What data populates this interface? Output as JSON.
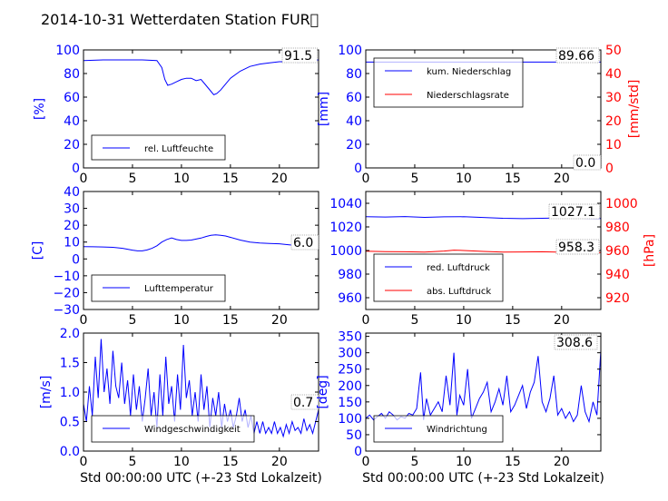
{
  "figure": {
    "title": "2014-10-31 Wetterdaten Station FUR\u0000"
  },
  "colors": {
    "blue": "#0000ff",
    "red": "#ff0000",
    "lightblue": "#8080ff",
    "black": "#000000"
  },
  "chart_data": [
    {
      "id": "humidity",
      "type": "line",
      "xlim": [
        0,
        24
      ],
      "xticks": [
        "0",
        "5",
        "10",
        "15",
        "20"
      ],
      "xlabel": "",
      "ylim": [
        0,
        100
      ],
      "yticks": [
        "0",
        "20",
        "40",
        "60",
        "80",
        "100"
      ],
      "ylabel": "[%]",
      "value_box": "91.5",
      "legend": [
        "rel. Luftfeuchte"
      ],
      "series": [
        {
          "name": "rel. Luftfeuchte",
          "color": "blue",
          "x": [
            0,
            2,
            4,
            6,
            7.5,
            8,
            8.3,
            8.6,
            9,
            9.5,
            10,
            10.5,
            11,
            11.5,
            12,
            12.5,
            13,
            13.3,
            13.6,
            14,
            14.5,
            15,
            16,
            17,
            18,
            19,
            20,
            21,
            22,
            23,
            24
          ],
          "y": [
            91,
            91.5,
            91.5,
            91.5,
            91,
            85,
            75,
            70,
            71,
            73,
            75,
            76,
            76,
            74,
            75,
            70,
            65,
            62,
            63,
            66,
            71,
            76,
            82,
            86,
            88,
            89,
            90,
            90,
            89.5,
            90.5,
            91.5
          ]
        }
      ]
    },
    {
      "id": "precipitation",
      "type": "line",
      "xlim": [
        0,
        24
      ],
      "xticks": [
        "0",
        "5",
        "10",
        "15",
        "20"
      ],
      "xlabel": "",
      "ylim": [
        0,
        100
      ],
      "yticks": [
        "0",
        "20",
        "40",
        "60",
        "80",
        "100"
      ],
      "ylabel": "[mm]",
      "ylim_right": [
        0,
        50
      ],
      "yticks_right": [
        "0",
        "10",
        "20",
        "30",
        "40",
        "50"
      ],
      "ylabel_right": "[mm/std]",
      "value_box": "89.66",
      "value_box_lower": "0.0",
      "legend": [
        "kum. Niederschlag",
        "Niederschlagsrate"
      ],
      "series": [
        {
          "name": "kum. Niederschlag",
          "color": "blue",
          "axis": "left",
          "x": [
            0,
            24
          ],
          "y": [
            89.66,
            89.66
          ]
        },
        {
          "name": "Niederschlagsrate",
          "color": "red",
          "axis": "right",
          "x": [
            0,
            24
          ],
          "y": [
            0,
            0
          ]
        }
      ]
    },
    {
      "id": "temperature",
      "type": "line",
      "xlim": [
        0,
        24
      ],
      "xticks": [
        "0",
        "5",
        "10",
        "15",
        "20"
      ],
      "xlabel": "",
      "ylim": [
        -30,
        40
      ],
      "yticks": [
        "−30",
        "−20",
        "−10",
        "0",
        "10",
        "20",
        "30",
        "40"
      ],
      "ylabel": "[C]",
      "value_box": "6.0",
      "legend": [
        "Lufttemperatur"
      ],
      "series": [
        {
          "name": "Lufttemperatur",
          "color": "blue",
          "x": [
            0,
            1,
            2,
            3,
            4,
            5,
            5.5,
            6,
            6.5,
            7,
            7.5,
            8,
            8.5,
            9,
            9.5,
            10,
            10.5,
            11,
            11.5,
            12,
            12.5,
            13,
            13.5,
            14,
            14.5,
            15,
            16,
            17,
            18,
            19,
            20,
            21,
            22,
            23,
            24
          ],
          "y": [
            7.3,
            7.2,
            7.1,
            6.9,
            6.3,
            5.2,
            4.8,
            4.8,
            5.3,
            6.3,
            7.8,
            10,
            11.5,
            12.5,
            11.5,
            11,
            11,
            11.2,
            11.8,
            12.4,
            13.3,
            14,
            14.3,
            14,
            13.6,
            12.8,
            11.2,
            10,
            9.4,
            9.2,
            9,
            8.4,
            7.8,
            7.3,
            6.0
          ]
        }
      ]
    },
    {
      "id": "pressure",
      "type": "line",
      "xlim": [
        0,
        24
      ],
      "xticks": [
        "0",
        "5",
        "10",
        "15",
        "20"
      ],
      "xlabel": "",
      "ylim": [
        950,
        1050
      ],
      "yticks": [
        "960",
        "980",
        "1000",
        "1020",
        "1040"
      ],
      "ylabel": "",
      "ylim_right": [
        910,
        1010
      ],
      "yticks_right": [
        "920",
        "940",
        "960",
        "980",
        "1000"
      ],
      "ylabel_right": "[hPa]",
      "value_box": "1027.1",
      "value_box_lower": "958.3",
      "legend": [
        "red. Luftdruck",
        "abs. Luftdruck"
      ],
      "series": [
        {
          "name": "red. Luftdruck",
          "color": "blue",
          "axis": "left",
          "x": [
            0,
            2,
            4,
            6,
            8,
            10,
            12,
            14,
            16,
            18,
            20,
            22,
            24
          ],
          "y": [
            1028.6,
            1028.4,
            1028.8,
            1028.1,
            1028.5,
            1028.6,
            1028.0,
            1027.3,
            1027.0,
            1027.3,
            1027.6,
            1027.3,
            1027.1
          ]
        },
        {
          "name": "abs. Luftdruck",
          "color": "red",
          "axis": "right",
          "x": [
            0,
            2,
            4,
            6,
            8,
            9,
            10,
            12,
            14,
            16,
            18,
            20,
            22,
            24
          ],
          "y": [
            959.4,
            959.1,
            958.9,
            958.7,
            959.5,
            960.3,
            960.0,
            959.2,
            958.7,
            958.8,
            958.9,
            958.5,
            958.4,
            958.3
          ]
        }
      ]
    },
    {
      "id": "windspeed",
      "type": "line",
      "xlim": [
        0,
        24
      ],
      "xticks": [
        "0",
        "5",
        "10",
        "15",
        "20"
      ],
      "xlabel": "Std 00:00:00 UTC (+-23 Std Lokalzeit)",
      "ylim": [
        0,
        2.0
      ],
      "yticks": [
        "0.0",
        "0.5",
        "1.0",
        "1.5",
        "2.0"
      ],
      "ylabel": "[m/s]",
      "value_box": "0.7",
      "legend": [
        "Windgeschwindigkeit"
      ],
      "series": [
        {
          "name": "Windgeschwindigkeit",
          "color": "blue",
          "x": [
            0,
            0.3,
            0.6,
            0.9,
            1.2,
            1.5,
            1.8,
            2.1,
            2.4,
            2.7,
            3.0,
            3.3,
            3.6,
            3.9,
            4.2,
            4.5,
            4.8,
            5.1,
            5.4,
            5.7,
            6.0,
            6.3,
            6.6,
            6.9,
            7.2,
            7.5,
            7.8,
            8.1,
            8.4,
            8.7,
            9.0,
            9.3,
            9.6,
            9.9,
            10.2,
            10.5,
            10.8,
            11.1,
            11.4,
            11.7,
            12.0,
            12.3,
            12.6,
            12.9,
            13.2,
            13.5,
            13.8,
            14.1,
            14.4,
            14.7,
            15.0,
            15.3,
            15.6,
            15.9,
            16.2,
            16.5,
            16.8,
            17.1,
            17.4,
            17.7,
            18.0,
            18.3,
            18.6,
            18.9,
            19.2,
            19.5,
            19.8,
            20.1,
            20.4,
            20.7,
            21.0,
            21.3,
            21.6,
            21.9,
            22.2,
            22.5,
            22.8,
            23.1,
            23.4,
            23.7,
            24.0
          ],
          "y": [
            0.8,
            0.5,
            1.1,
            0.6,
            1.6,
            0.9,
            1.9,
            1.0,
            1.4,
            0.8,
            1.7,
            1.1,
            0.9,
            1.5,
            0.8,
            1.2,
            0.6,
            1.3,
            0.7,
            1.1,
            0.5,
            0.9,
            1.4,
            0.6,
            1.0,
            0.4,
            1.3,
            0.6,
            1.6,
            0.8,
            1.1,
            0.5,
            1.3,
            0.7,
            1.8,
            0.9,
            1.2,
            0.6,
            1.0,
            0.5,
            1.3,
            0.7,
            1.1,
            0.4,
            0.9,
            0.6,
            1.0,
            0.4,
            0.8,
            0.5,
            0.7,
            0.4,
            0.6,
            0.9,
            0.5,
            0.7,
            0.4,
            0.6,
            0.3,
            0.5,
            0.3,
            0.5,
            0.3,
            0.4,
            0.3,
            0.5,
            0.3,
            0.4,
            0.25,
            0.45,
            0.3,
            0.5,
            0.35,
            0.4,
            0.3,
            0.55,
            0.35,
            0.45,
            0.3,
            0.5,
            0.7
          ]
        }
      ]
    },
    {
      "id": "winddirection",
      "type": "line",
      "xlim": [
        0,
        24
      ],
      "xticks": [
        "0",
        "5",
        "10",
        "15",
        "20"
      ],
      "xlabel": "Std 00:00:00 UTC (+-23 Std Lokalzeit)",
      "ylim": [
        0,
        360
      ],
      "yticks": [
        "0",
        "50",
        "100",
        "150",
        "200",
        "250",
        "300",
        "350"
      ],
      "ylabel": "[deg]",
      "value_box": "308.6",
      "legend": [
        "Windrichtung"
      ],
      "series": [
        {
          "name": "Windrichtung",
          "color": "blue",
          "x": [
            0,
            0.4,
            0.8,
            1.2,
            1.6,
            2.0,
            2.4,
            2.8,
            3.2,
            3.6,
            4.0,
            4.4,
            4.8,
            5.2,
            5.6,
            5.9,
            6.2,
            6.6,
            7.0,
            7.4,
            7.8,
            8.2,
            8.6,
            9.0,
            9.3,
            9.6,
            10.0,
            10.4,
            10.8,
            11.2,
            11.6,
            12.0,
            12.4,
            12.8,
            13.2,
            13.6,
            14.0,
            14.4,
            14.8,
            15.2,
            15.6,
            16.0,
            16.4,
            16.8,
            17.2,
            17.6,
            18.0,
            18.4,
            18.8,
            19.2,
            19.6,
            20.0,
            20.4,
            20.8,
            21.2,
            21.6,
            22.0,
            22.4,
            22.8,
            23.2,
            23.6,
            24.0
          ],
          "y": [
            100,
            110,
            95,
            105,
            115,
            100,
            120,
            110,
            95,
            105,
            100,
            115,
            110,
            130,
            240,
            95,
            160,
            110,
            130,
            150,
            120,
            230,
            140,
            300,
            110,
            170,
            140,
            250,
            100,
            130,
            160,
            180,
            210,
            120,
            150,
            190,
            140,
            230,
            120,
            140,
            170,
            200,
            130,
            180,
            210,
            290,
            150,
            120,
            160,
            230,
            110,
            130,
            100,
            120,
            90,
            110,
            200,
            120,
            90,
            150,
            110,
            308
          ]
        }
      ]
    }
  ]
}
